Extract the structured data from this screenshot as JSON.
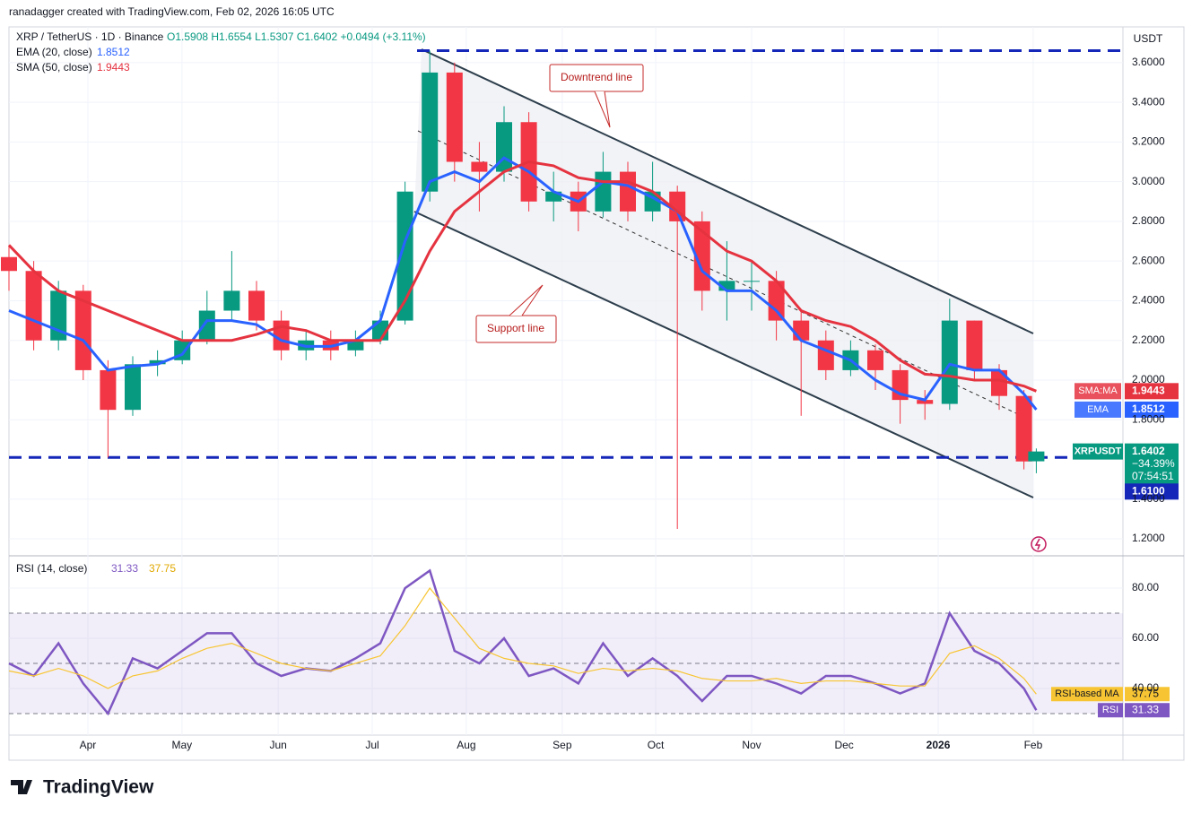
{
  "header": {
    "credit": "ranadagger created with TradingView.com, Feb 02, 2026 16:05 UTC",
    "brand": "TradingView"
  },
  "chart_data": [
    {
      "type": "candlestick",
      "symbol": "XRP / TetherUS · 1D · Binance",
      "ohlc_text": "O1.5908 H1.6554 L1.5307 C1.6402 +0.0494 (+3.11%)",
      "currency": "USDT",
      "candles": {
        "x": [
          0,
          8,
          16,
          24,
          32,
          40,
          48,
          56,
          64,
          72,
          80,
          88,
          96,
          104,
          112,
          120,
          128,
          136,
          144,
          152,
          160,
          168,
          176,
          184,
          192,
          200,
          208,
          216,
          224,
          232,
          240,
          248,
          256,
          264,
          272,
          280,
          288,
          296,
          304,
          312,
          320,
          328,
          332
        ],
        "open": [
          2.62,
          2.55,
          2.2,
          2.45,
          2.05,
          1.85,
          2.08,
          2.1,
          2.2,
          2.35,
          2.45,
          2.3,
          2.15,
          2.2,
          2.15,
          2.2,
          2.3,
          2.95,
          3.55,
          3.1,
          3.05,
          3.3,
          2.9,
          2.95,
          2.85,
          3.05,
          2.85,
          2.95,
          2.8,
          2.45,
          2.5,
          2.5,
          2.3,
          2.2,
          2.05,
          2.15,
          2.05,
          1.9,
          1.88,
          2.3,
          2.05,
          1.92,
          1.5908
        ],
        "high": [
          2.68,
          2.6,
          2.5,
          2.48,
          2.1,
          2.12,
          2.15,
          2.25,
          2.45,
          2.65,
          2.5,
          2.35,
          2.25,
          2.25,
          2.25,
          2.35,
          3.0,
          3.66,
          3.6,
          3.2,
          3.38,
          3.35,
          3.05,
          3.0,
          3.15,
          3.1,
          3.1,
          2.98,
          2.85,
          2.7,
          2.6,
          2.55,
          2.35,
          2.25,
          2.2,
          2.18,
          2.08,
          1.95,
          2.41,
          2.3,
          2.08,
          1.95,
          1.6554
        ],
        "low": [
          2.45,
          2.15,
          2.15,
          2.0,
          1.61,
          1.82,
          2.02,
          2.08,
          2.18,
          2.3,
          2.25,
          2.1,
          2.1,
          2.1,
          2.12,
          2.18,
          2.28,
          2.9,
          3.0,
          2.85,
          3.0,
          2.85,
          2.8,
          2.75,
          2.82,
          2.8,
          2.8,
          1.25,
          2.35,
          2.3,
          2.35,
          2.2,
          1.82,
          2.0,
          2.02,
          1.95,
          1.78,
          1.8,
          1.85,
          2.0,
          1.85,
          1.55,
          1.5307
        ],
        "close": [
          2.55,
          2.2,
          2.45,
          2.05,
          1.85,
          2.08,
          2.1,
          2.2,
          2.35,
          2.45,
          2.3,
          2.15,
          2.2,
          2.15,
          2.2,
          2.3,
          2.95,
          3.55,
          3.1,
          3.05,
          3.3,
          2.9,
          2.95,
          2.85,
          3.05,
          2.85,
          2.95,
          2.8,
          2.45,
          2.5,
          2.5,
          2.3,
          2.2,
          2.05,
          2.15,
          2.05,
          1.9,
          1.88,
          2.3,
          2.05,
          1.92,
          1.59,
          1.6402
        ],
        "up_color": "#089981",
        "down_color": "#f23645"
      },
      "overlays": [
        {
          "name": "EMA (20, close)",
          "tag": "EMA",
          "color": "#2962ff",
          "values": [
            2.35,
            2.3,
            2.25,
            2.2,
            2.05,
            2.07,
            2.08,
            2.13,
            2.3,
            2.3,
            2.28,
            2.2,
            2.17,
            2.17,
            2.2,
            2.3,
            2.7,
            3.0,
            3.05,
            3.0,
            3.12,
            3.05,
            2.95,
            2.9,
            3.0,
            2.98,
            2.92,
            2.85,
            2.55,
            2.45,
            2.45,
            2.35,
            2.2,
            2.15,
            2.1,
            2.0,
            1.93,
            1.9,
            2.08,
            2.05,
            2.05,
            1.93,
            1.8512
          ]
        },
        {
          "name": "SMA (50, close)",
          "tag": "SMA:MA",
          "color": "#e53340",
          "values": [
            2.68,
            2.55,
            2.45,
            2.4,
            2.35,
            2.3,
            2.25,
            2.2,
            2.2,
            2.2,
            2.23,
            2.27,
            2.25,
            2.2,
            2.2,
            2.2,
            2.4,
            2.65,
            2.85,
            2.95,
            3.05,
            3.1,
            3.08,
            3.02,
            3.0,
            3.0,
            2.95,
            2.85,
            2.75,
            2.65,
            2.6,
            2.5,
            2.35,
            2.3,
            2.27,
            2.2,
            2.1,
            2.03,
            2.02,
            2.0,
            2.0,
            1.97,
            1.9443
          ]
        }
      ],
      "last_label": {
        "name": "XRPUSDT",
        "change": "−34.39%",
        "countdown": "07:54:51"
      },
      "levels": [
        {
          "value": 3.66
        },
        {
          "value": 1.61,
          "label": "1.6100"
        }
      ],
      "annotations": [
        "Downtrend line",
        "Support line"
      ],
      "xlim": [
        0,
        360
      ],
      "xticks": [
        {
          "value": 25.5,
          "label": "Apr"
        },
        {
          "value": 55.9,
          "label": "May"
        },
        {
          "value": 87,
          "label": "Jun"
        },
        {
          "value": 117.4,
          "label": "Jul"
        },
        {
          "value": 147.8,
          "label": "Aug"
        },
        {
          "value": 178.8,
          "label": "Sep"
        },
        {
          "value": 209,
          "label": "Oct"
        },
        {
          "value": 240,
          "label": "Nov"
        },
        {
          "value": 269.9,
          "label": "Dec"
        },
        {
          "value": 300.3,
          "label": "2026"
        },
        {
          "value": 331,
          "label": "Feb"
        }
      ],
      "ylim": [
        1.137,
        3.78
      ],
      "yticks": [
        {
          "value": 1.2,
          "label": "1.2000"
        },
        {
          "value": 1.4,
          "label": "1.4000"
        },
        {
          "value": 1.8,
          "label": "1.8000"
        },
        {
          "value": 2.0,
          "label": "2.0000"
        },
        {
          "value": 2.2,
          "label": "2.2000"
        },
        {
          "value": 2.4,
          "label": "2.4000"
        },
        {
          "value": 2.6,
          "label": "2.6000"
        },
        {
          "value": 2.8,
          "label": "2.8000"
        },
        {
          "value": 3.0,
          "label": "3.0000"
        },
        {
          "value": 3.2,
          "label": "3.2000"
        },
        {
          "value": 3.4,
          "label": "3.4000"
        },
        {
          "value": 3.6,
          "label": "3.6000"
        }
      ],
      "grid": true
    },
    {
      "type": "line",
      "title": "RSI (14, close)",
      "series": [
        {
          "name": "RSI",
          "color": "#7e57c2",
          "values": [
            50,
            45,
            58,
            42,
            30,
            52,
            48,
            55,
            62,
            62,
            50,
            45,
            48,
            47,
            52,
            58,
            80,
            87,
            55,
            50,
            60,
            45,
            48,
            42,
            58,
            45,
            52,
            45,
            35,
            45,
            45,
            42,
            38,
            45,
            45,
            42,
            38,
            42,
            70,
            55,
            50,
            40,
            31.33
          ]
        },
        {
          "name": "RSI-based MA",
          "color": "#f7c533",
          "values": [
            47,
            45,
            48,
            45,
            40,
            45,
            47,
            52,
            56,
            58,
            54,
            50,
            48,
            47,
            50,
            53,
            65,
            80,
            68,
            56,
            52,
            50,
            49,
            46,
            48,
            47,
            48,
            47,
            44,
            43,
            43,
            44,
            42,
            43,
            43,
            42,
            41,
            41,
            54,
            57,
            52,
            44,
            37.75
          ]
        }
      ],
      "band": [
        30,
        70
      ],
      "midline": 50,
      "ylim": [
        21.4,
        91.1
      ],
      "yticks": [
        {
          "value": 40,
          "label": "40.00"
        },
        {
          "value": 60,
          "label": "60.00"
        },
        {
          "value": 80,
          "label": "80.00"
        }
      ]
    }
  ]
}
